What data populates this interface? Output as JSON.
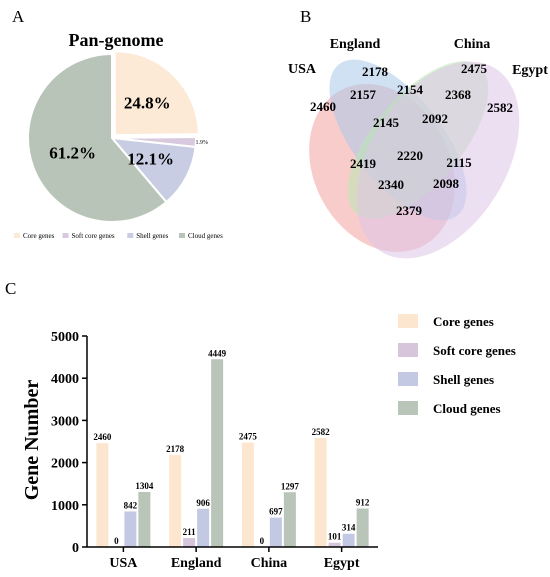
{
  "panels": {
    "a": "A",
    "b": "B",
    "c": "C"
  },
  "chart_data": [
    {
      "type": "pie",
      "title": "Pan-genome",
      "slices": [
        {
          "label": "Core genes",
          "value": 24.8,
          "text": "24.8%",
          "color": "#fce9d6"
        },
        {
          "label": "Soft core genes",
          "value": 1.9,
          "text": "1.9%",
          "color": "#d8c9df"
        },
        {
          "label": "Shell genes",
          "value": 12.1,
          "text": "12.1%",
          "color": "#c9cde3"
        },
        {
          "label": "Cloud genes",
          "value": 61.2,
          "text": "61.2%",
          "color": "#b9c4b9"
        }
      ],
      "legend_position": "bottom"
    },
    {
      "type": "venn",
      "sets": [
        {
          "name": "USA",
          "color": "#f4a3a3"
        },
        {
          "name": "England",
          "color": "#a9c8ea"
        },
        {
          "name": "China",
          "color": "#b9e8b3"
        },
        {
          "name": "Egypt",
          "color": "#dcc4e8"
        }
      ],
      "regions": [
        {
          "sets": [
            "USA"
          ],
          "value": 2460
        },
        {
          "sets": [
            "England"
          ],
          "value": 2178
        },
        {
          "sets": [
            "China"
          ],
          "value": 2475
        },
        {
          "sets": [
            "Egypt"
          ],
          "value": 2582
        },
        {
          "sets": [
            "USA",
            "England"
          ],
          "value": 2157
        },
        {
          "sets": [
            "England",
            "China"
          ],
          "value": 2154
        },
        {
          "sets": [
            "China",
            "Egypt"
          ],
          "value": 2368
        },
        {
          "sets": [
            "USA",
            "England",
            "China"
          ],
          "value": 2145
        },
        {
          "sets": [
            "England",
            "China",
            "Egypt"
          ],
          "value": 2092
        },
        {
          "sets": [
            "USA",
            "China"
          ],
          "value": 2419
        },
        {
          "sets": [
            "USA",
            "England",
            "China",
            "Egypt"
          ],
          "value": 2220
        },
        {
          "sets": [
            "England",
            "Egypt"
          ],
          "value": 2115
        },
        {
          "sets": [
            "USA",
            "China",
            "Egypt"
          ],
          "value": 2340
        },
        {
          "sets": [
            "USA",
            "England",
            "Egypt"
          ],
          "value": 2098
        },
        {
          "sets": [
            "USA",
            "Egypt"
          ],
          "value": 2379
        }
      ]
    },
    {
      "type": "bar",
      "categories": [
        "USA",
        "England",
        "China",
        "Egypt"
      ],
      "series": [
        {
          "name": "Core genes",
          "values": [
            2460,
            2178,
            2475,
            2582
          ],
          "color": "#fde6cf"
        },
        {
          "name": "Soft core genes",
          "values": [
            0,
            211,
            0,
            101
          ],
          "color": "#d6c5db"
        },
        {
          "name": "Shell genes",
          "values": [
            842,
            906,
            697,
            314
          ],
          "color": "#c4c9e3"
        },
        {
          "name": "Cloud genes",
          "values": [
            1304,
            4449,
            1297,
            912
          ],
          "color": "#b8c5b8"
        }
      ],
      "ylabel": "Gene Number",
      "ylim": [
        0,
        5000
      ],
      "yticks": [
        0,
        1000,
        2000,
        3000,
        4000,
        5000
      ],
      "legend_position": "right"
    }
  ]
}
